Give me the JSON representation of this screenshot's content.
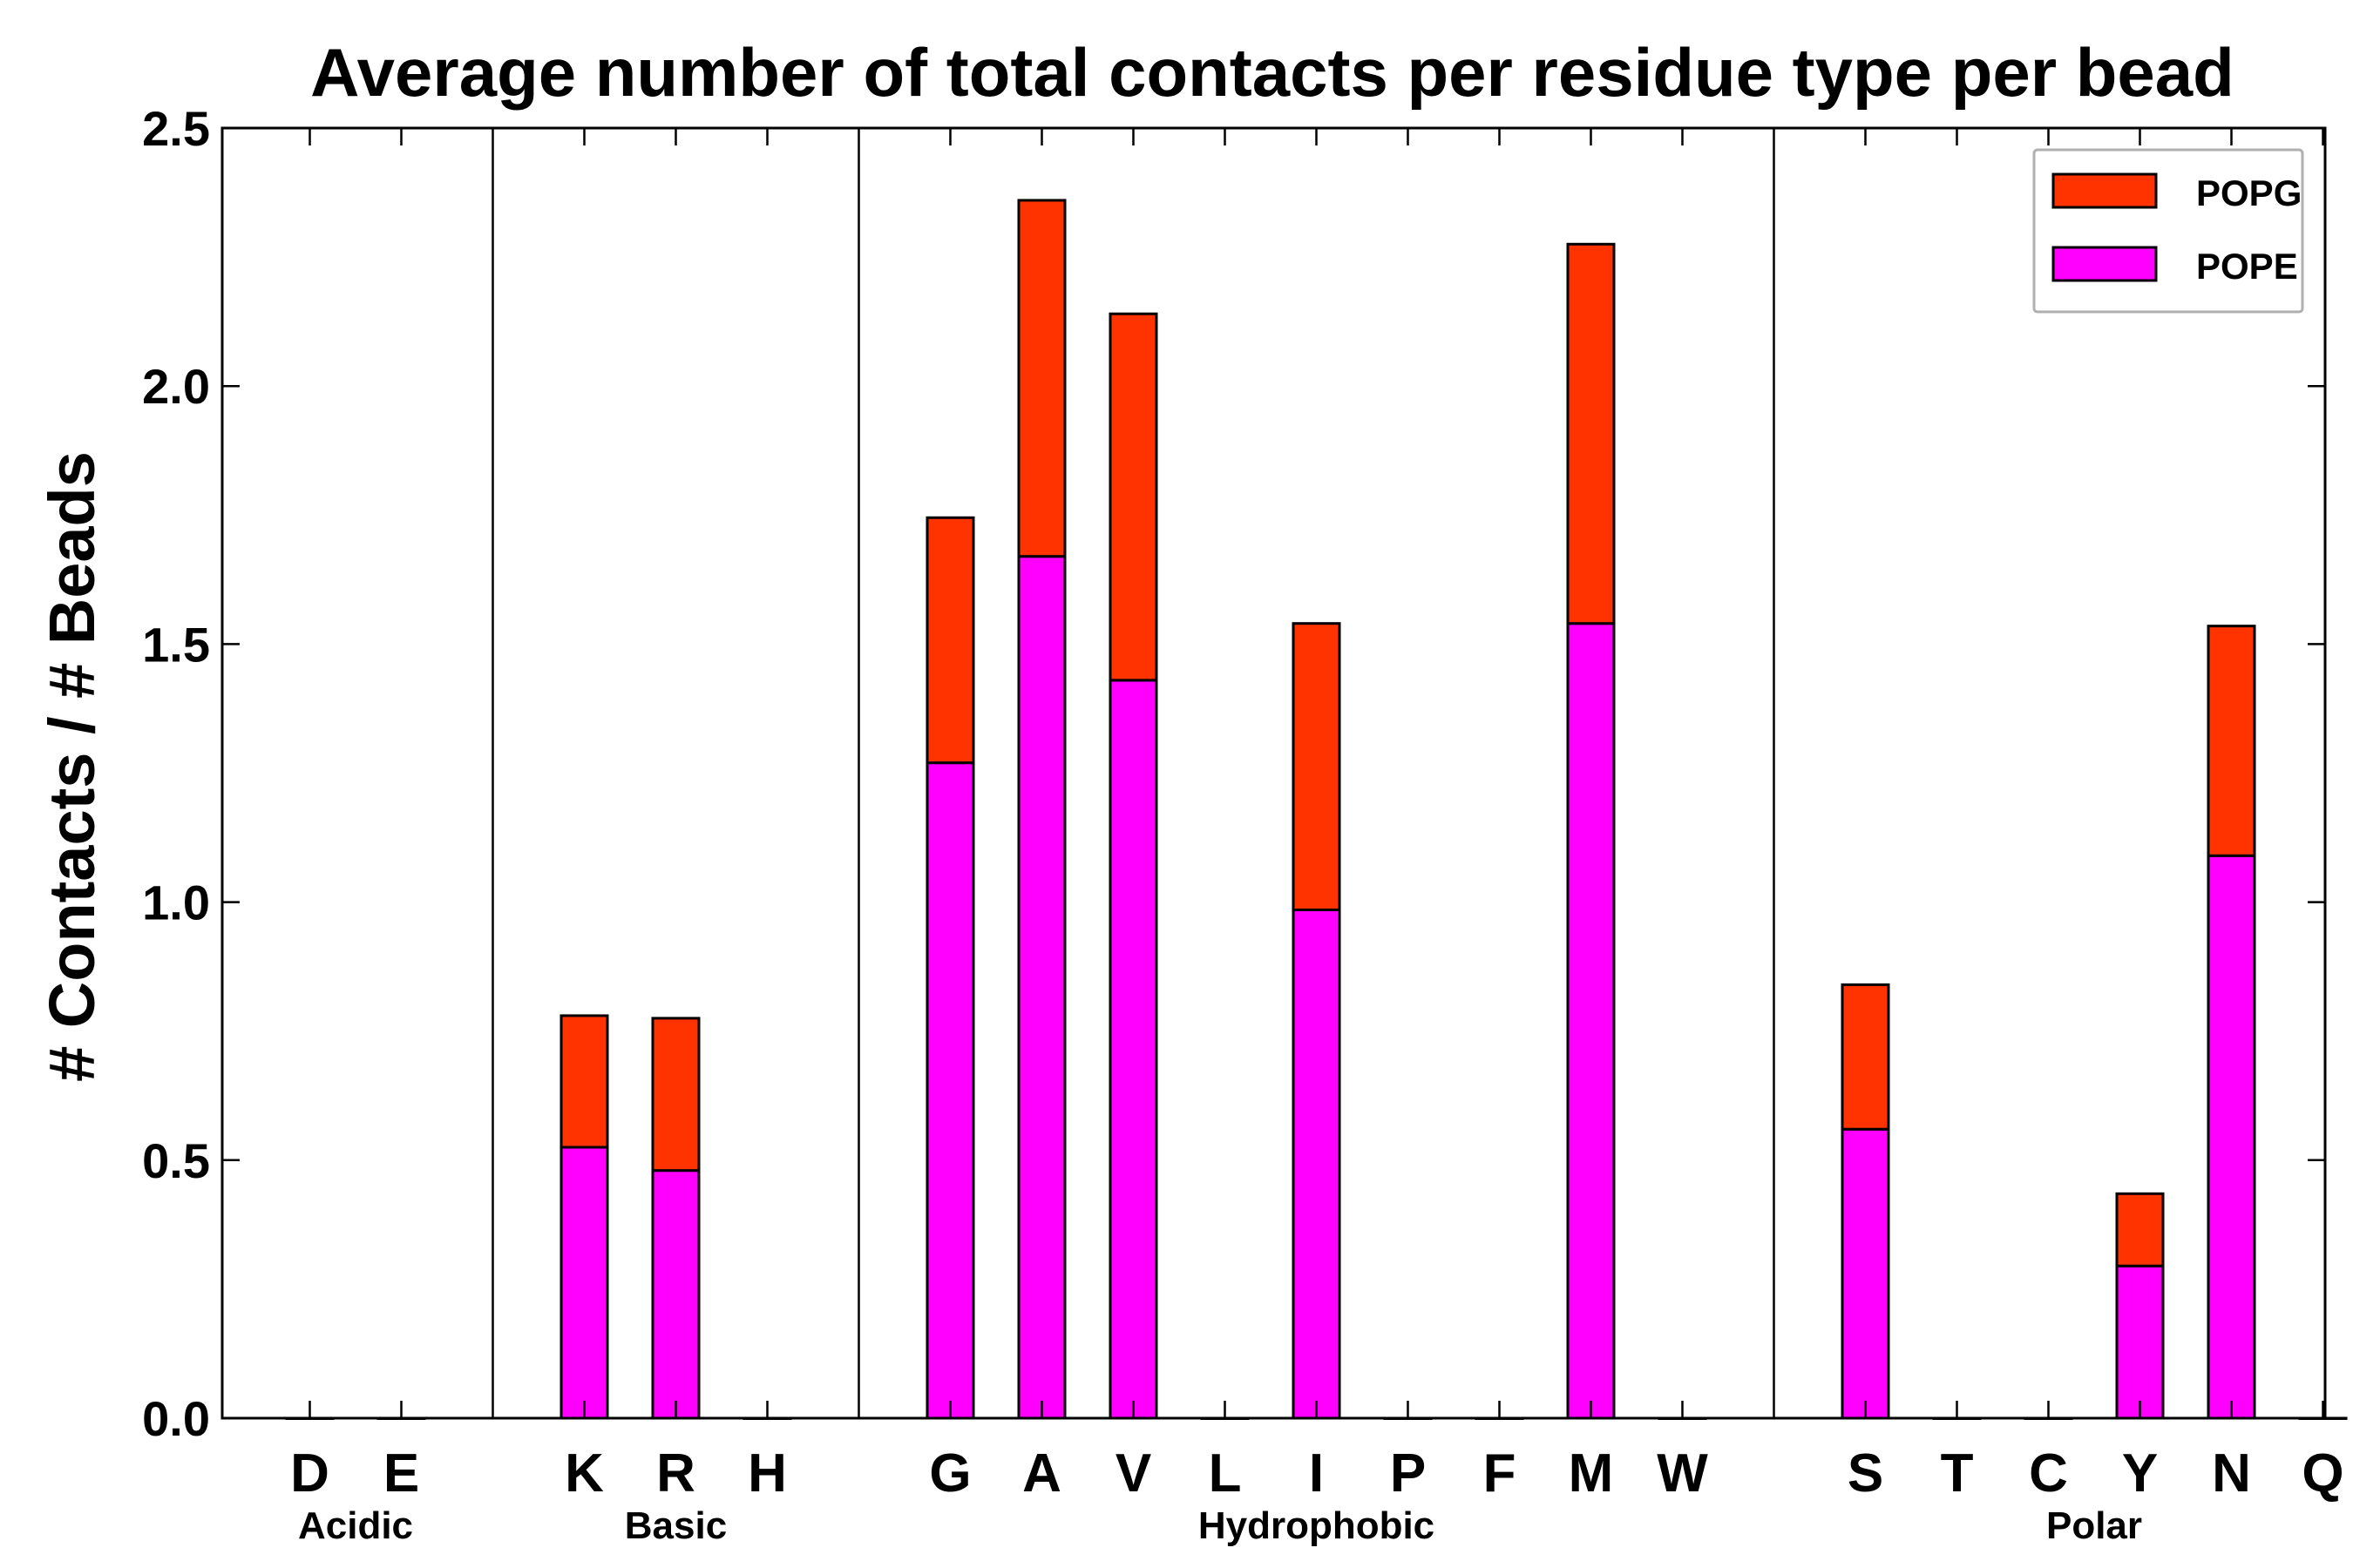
{
  "chart_data": {
    "type": "bar",
    "stacked": true,
    "title": "Average number of total contacts per residue type per bead",
    "xlabel": "",
    "ylabel": "# Contacts / # Beads",
    "ylim": [
      0,
      2.5
    ],
    "yticks": [
      "0.0",
      "0.5",
      "1.0",
      "1.5",
      "2.0",
      "2.5"
    ],
    "grid": false,
    "legend_position": "top-right",
    "categories": [
      "D",
      "E",
      "K",
      "R",
      "H",
      "G",
      "A",
      "V",
      "L",
      "I",
      "P",
      "F",
      "M",
      "W",
      "S",
      "T",
      "C",
      "Y",
      "N",
      "Q"
    ],
    "groups": [
      {
        "name": "Acidic",
        "members": [
          "D",
          "E"
        ]
      },
      {
        "name": "Basic",
        "members": [
          "K",
          "R",
          "H"
        ]
      },
      {
        "name": "Hydrophobic",
        "members": [
          "G",
          "A",
          "V",
          "L",
          "I",
          "P",
          "F",
          "M",
          "W"
        ]
      },
      {
        "name": "Polar",
        "members": [
          "S",
          "T",
          "C",
          "Y",
          "N",
          "Q"
        ]
      }
    ],
    "series": [
      {
        "name": "POPE",
        "color": "#ff00ff",
        "values": [
          0,
          0,
          0.525,
          0.48,
          0,
          1.27,
          1.67,
          1.43,
          0,
          0.985,
          0,
          0,
          1.54,
          0,
          0.56,
          0,
          0,
          0.295,
          1.09,
          0
        ]
      },
      {
        "name": "POPG",
        "color": "#ff3300",
        "values": [
          0,
          0,
          0.255,
          0.295,
          0,
          0.475,
          0.69,
          0.71,
          0,
          0.555,
          0,
          0,
          0.735,
          0,
          0.28,
          0,
          0,
          0.14,
          0.445,
          0
        ]
      }
    ],
    "legend": [
      {
        "label": "POPG",
        "color": "#ff3300"
      },
      {
        "label": "POPE",
        "color": "#ff00ff"
      }
    ]
  }
}
